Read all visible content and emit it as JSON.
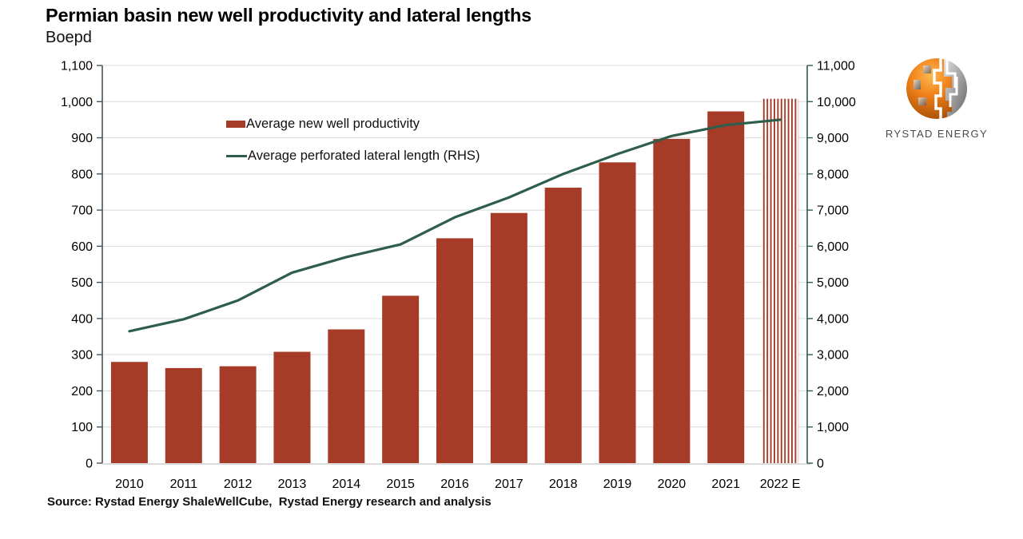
{
  "title": "Permian basin new well productivity and lateral lengths",
  "y_left_unit": "Boepd",
  "source": "Source: Rystad Energy ShaleWellCube,  Rystad Energy research and analysis",
  "logo": {
    "text": "RYSTAD ENERGY"
  },
  "legend": [
    {
      "label": "Average new well productivity",
      "marker": "bar-swatch",
      "color": "#A63B28"
    },
    {
      "label": "Average perforated lateral length (RHS)",
      "marker": "line-swatch",
      "color": "#2F5D4C"
    }
  ],
  "chart_data": {
    "type": "bar",
    "subtype": "bar+line combo, dual axis",
    "title": "Permian basin new well productivity and lateral lengths",
    "xlabel": "",
    "ylabel": "Boepd",
    "categories": [
      "2010",
      "2011",
      "2012",
      "2013",
      "2014",
      "2015",
      "2016",
      "2017",
      "2018",
      "2019",
      "2020",
      "2021",
      "2022 E"
    ],
    "series": [
      {
        "name": "Average new well productivity",
        "type": "bar",
        "axis": "left",
        "color": "#A63B28",
        "values": [
          280,
          263,
          268,
          308,
          370,
          463,
          622,
          692,
          762,
          832,
          897,
          973,
          1008
        ],
        "striped_categories": [
          "2022 E"
        ]
      },
      {
        "name": "Average perforated lateral length (RHS)",
        "type": "line",
        "axis": "right",
        "color": "#2F5D4C",
        "values": [
          3650,
          3980,
          4500,
          5270,
          5700,
          6050,
          6800,
          7350,
          8000,
          8550,
          9050,
          9350,
          9500
        ]
      }
    ],
    "left_axis": {
      "min": 0,
      "max": 1100,
      "step": 100,
      "tick_labels": [
        "0",
        "100",
        "200",
        "300",
        "400",
        "500",
        "600",
        "700",
        "800",
        "900",
        "1,000",
        "1,100"
      ]
    },
    "right_axis": {
      "min": 0,
      "max": 11000,
      "step": 1000,
      "tick_labels": [
        "0",
        "1,000",
        "2,000",
        "3,000",
        "4,000",
        "5,000",
        "6,000",
        "7,000",
        "8,000",
        "9,000",
        "10,000",
        "11,000"
      ]
    },
    "grid": "horizontal, light gray",
    "legend_position": "inside top-left",
    "colors": {
      "bar": "#A63B28",
      "line": "#2F5D4C",
      "grid": "#D9D9D9",
      "left_axis_line": "#44545E",
      "right_axis_line": "#2F5D4C",
      "bottom_axis_line": "#CFCFCF"
    }
  }
}
